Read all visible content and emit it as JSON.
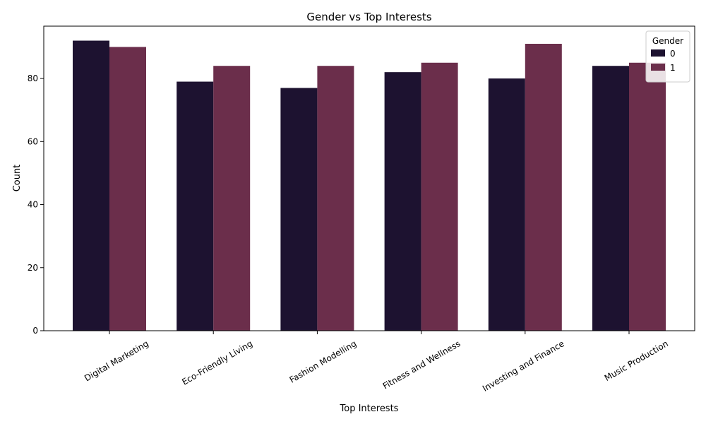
{
  "chart_data": {
    "type": "bar",
    "title": "Gender vs Top Interests",
    "xlabel": "Top Interests",
    "ylabel": "Count",
    "categories": [
      "Digital Marketing",
      "Eco-Friendly Living",
      "Fashion Modelling",
      "Fitness and Wellness",
      "Investing and Finance",
      "Music Production"
    ],
    "series": [
      {
        "name": "0",
        "color": "#1d1230",
        "values": [
          92,
          79,
          77,
          82,
          80,
          84
        ]
      },
      {
        "name": "1",
        "color": "#6b2e4b",
        "values": [
          90,
          84,
          84,
          85,
          91,
          85
        ]
      }
    ],
    "ylim": [
      0,
      96.6
    ],
    "yticks": [
      0,
      20,
      40,
      60,
      80
    ],
    "grid": false,
    "legend": {
      "title": "Gender",
      "placement": "top-right"
    }
  }
}
